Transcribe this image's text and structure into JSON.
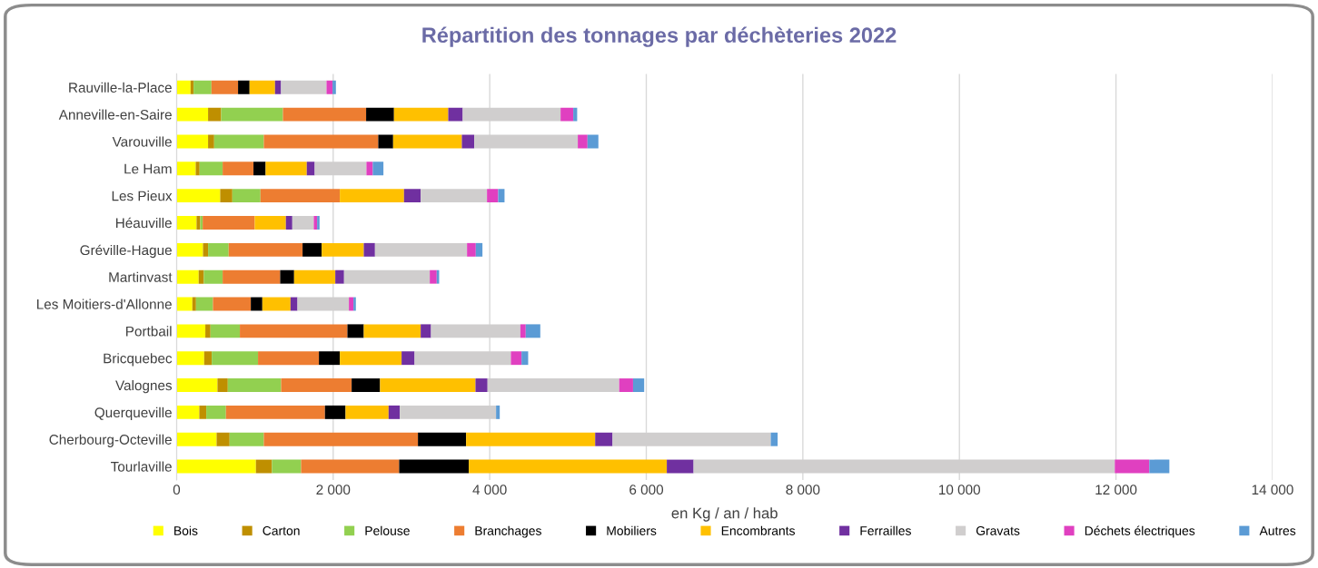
{
  "chart_data": {
    "type": "bar",
    "orientation": "horizontal",
    "stacked": true,
    "title": "Répartition des tonnages par déchèteries 2022",
    "xlabel": "en Kg / an / hab",
    "categories": [
      "Rauville-la-Place",
      "Anneville-en-Saire",
      "Varouville",
      "Le Ham",
      "Les Pieux",
      "Héauville",
      "Gréville-Hague",
      "Martinvast",
      "Les Moitiers-d'Allonne",
      "Portbail",
      "Bricquebec",
      "Valognes",
      "Querqueville",
      "Cherbourg-Octeville",
      "Tourlaville"
    ],
    "series": [
      {
        "name": "Bois",
        "color": "#ffff00",
        "values": [
          178,
          402,
          402,
          244,
          557,
          255,
          337,
          282,
          201,
          367,
          352,
          522,
          290,
          511,
          1013
        ]
      },
      {
        "name": "Carton",
        "color": "#bf8f00",
        "values": [
          39,
          167,
          78,
          50,
          155,
          47,
          65,
          66,
          47,
          66,
          97,
          132,
          89,
          166,
          205
        ]
      },
      {
        "name": "Pelouse",
        "color": "#92d050",
        "values": [
          228,
          789,
          634,
          294,
          359,
          31,
          263,
          240,
          216,
          375,
          591,
          681,
          251,
          437,
          372
        ]
      },
      {
        "name": "Branchages",
        "color": "#ed7d31",
        "values": [
          340,
          1063,
          1462,
          394,
          1014,
          665,
          944,
          735,
          484,
          1374,
          778,
          901,
          1265,
          1969,
          1253
        ]
      },
      {
        "name": "Mobiliers",
        "color": "#000000",
        "values": [
          147,
          356,
          190,
          155,
          0,
          0,
          244,
          178,
          147,
          209,
          267,
          363,
          263,
          615,
          890
        ]
      },
      {
        "name": "Encombrants",
        "color": "#ffc000",
        "values": [
          325,
          693,
          878,
          526,
          820,
          398,
          538,
          526,
          360,
          727,
          789,
          1219,
          550,
          1649,
          2529
        ]
      },
      {
        "name": "Ferrailles",
        "color": "#7030a0",
        "values": [
          77,
          185,
          158,
          101,
          213,
          82,
          143,
          112,
          89,
          132,
          166,
          154,
          143,
          222,
          342
        ]
      },
      {
        "name": "Gravats",
        "color": "#d0cece",
        "values": [
          581,
          1250,
          1323,
          661,
          847,
          274,
          1176,
          1095,
          657,
          1141,
          1230,
          1682,
          1230,
          2021,
          5381
        ]
      },
      {
        "name": "Déchets électriques",
        "color": "#e040c0",
        "values": [
          77,
          162,
          124,
          81,
          143,
          43,
          112,
          89,
          58,
          69,
          136,
          177,
          0,
          0,
          441
        ]
      },
      {
        "name": "Autres",
        "color": "#5b9bd5",
        "values": [
          43,
          50,
          139,
          136,
          81,
          31,
          85,
          31,
          31,
          186,
          85,
          142,
          47,
          88,
          256
        ]
      }
    ],
    "xlim": [
      0,
      14000
    ],
    "xticks": [
      0,
      {
        "value": 2000,
        "label": "2 000"
      },
      {
        "value": 4000,
        "label": "4 000"
      },
      {
        "value": 6000,
        "label": "6 000"
      },
      {
        "value": 8000,
        "label": "8 000"
      },
      {
        "value": 10000,
        "label": "10 000"
      },
      {
        "value": 12000,
        "label": "12 000"
      },
      {
        "value": 14000,
        "label": "14 000"
      }
    ],
    "grid": "x",
    "legend": "bottom"
  }
}
